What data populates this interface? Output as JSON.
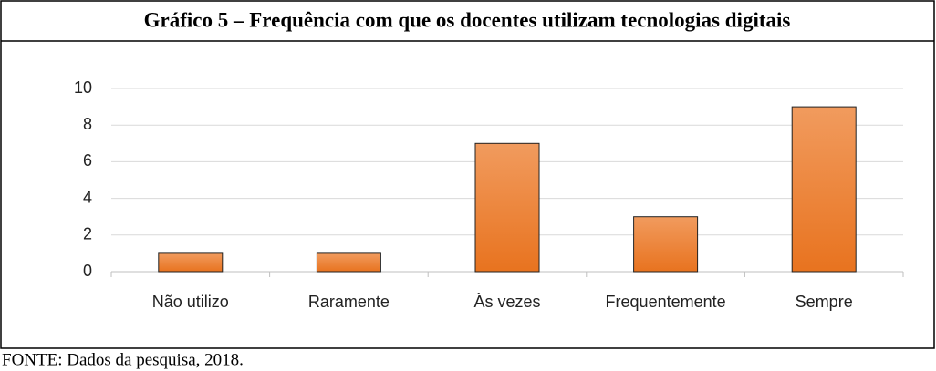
{
  "chart_data": {
    "type": "bar",
    "title": "Gráfico 5 – Frequência com que os docentes utilizam tecnologias digitais",
    "categories": [
      "Não utilizo",
      "Raramente",
      "Às vezes",
      "Frequentemente",
      "Sempre"
    ],
    "values": [
      1,
      1,
      7,
      3,
      9
    ],
    "color": "#ed7d31",
    "ylim": [
      0,
      10
    ],
    "yticks": [
      0,
      2,
      4,
      6,
      8,
      10
    ],
    "grid": true,
    "source": "FONTE: Dados da pesquisa, 2018."
  }
}
